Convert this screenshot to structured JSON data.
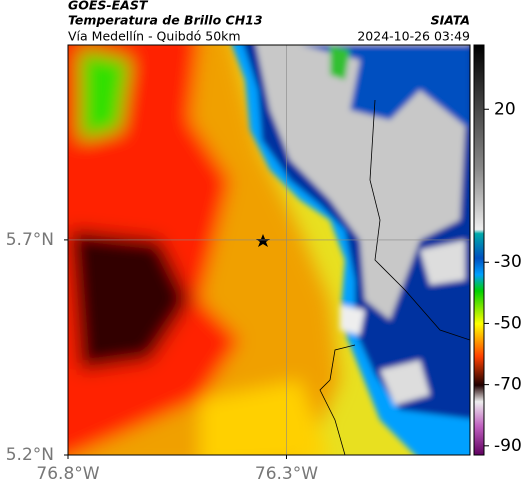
{
  "header": {
    "title": "GOES-EAST",
    "subtitle": "Temperatura de Brillo CH13",
    "region": "Vía Medellín - Quibdó 50km",
    "source": "SIATA",
    "datetime": "2024-10-26 03:49"
  },
  "map": {
    "xlim": [
      -76.8,
      -75.88
    ],
    "ylim": [
      5.2,
      6.153
    ],
    "xticks": [
      {
        "value": -76.8,
        "label": "76.8°W"
      },
      {
        "value": -76.3,
        "label": "76.3°W"
      }
    ],
    "yticks": [
      {
        "value": 5.2,
        "label": "5.2°N"
      },
      {
        "value": 5.7,
        "label": "5.7°N"
      }
    ],
    "grid": true
  },
  "colorbar": {
    "clim": [
      -93,
      41
    ],
    "ticks": [
      20,
      -30,
      -50,
      -70,
      -90
    ]
  }
}
